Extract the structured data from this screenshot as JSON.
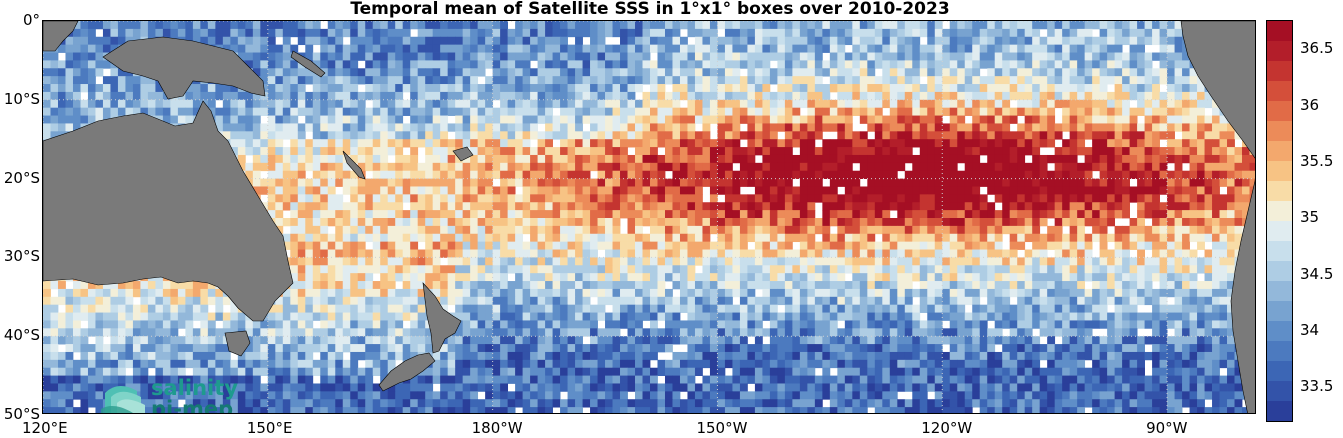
{
  "title": "Temporal mean of Satellite SSS in 1°x1° boxes over 2010-2023",
  "logo": {
    "line1": "salinity",
    "line2": "pi-mep"
  },
  "axes": {
    "lat_ticks": [
      {
        "label": "0°",
        "value": 0
      },
      {
        "label": "10°S",
        "value": -10
      },
      {
        "label": "20°S",
        "value": -20
      },
      {
        "label": "30°S",
        "value": -30
      },
      {
        "label": "40°S",
        "value": -40
      },
      {
        "label": "50°S",
        "value": -50
      }
    ],
    "lon_ticks": [
      {
        "label": "120°E",
        "value": 120
      },
      {
        "label": "150°E",
        "value": 150
      },
      {
        "label": "180°W",
        "value": 180
      },
      {
        "label": "150°W",
        "value": 210
      },
      {
        "label": "120°W",
        "value": 240
      },
      {
        "label": "90°W",
        "value": 270
      }
    ],
    "lon_range": [
      120,
      282
    ],
    "lat_range": [
      -50,
      0
    ]
  },
  "colorbar": {
    "min": 33.2,
    "max": 36.75,
    "ticks": [
      "33.5",
      "34",
      "34.5",
      "35",
      "35.5",
      "36",
      "36.5"
    ],
    "colors": [
      "#2a3f9a",
      "#3353a9",
      "#3c66b5",
      "#4c7abf",
      "#5f8ec8",
      "#78a3d0",
      "#93b8da",
      "#aecde4",
      "#c8dfec",
      "#e0ecf0",
      "#f3efd9",
      "#f8dca7",
      "#f7c384",
      "#f3a86d",
      "#ec8b59",
      "#e16b47",
      "#d44f3a",
      "#c43430",
      "#b31e2a",
      "#a50f24"
    ]
  },
  "map_colors": {
    "land": "#7a7a7a",
    "ocean_missing": "#ffffff",
    "grid": "#d0d0d0"
  }
}
